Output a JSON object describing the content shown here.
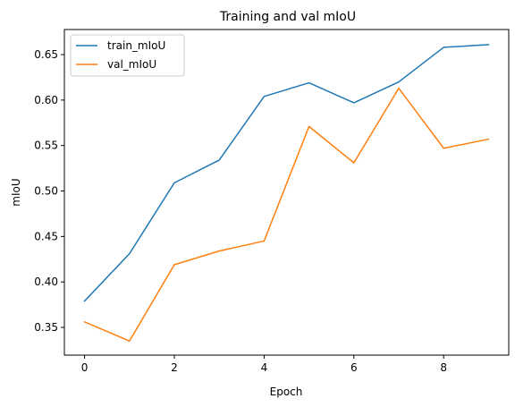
{
  "chart_data": {
    "type": "line",
    "title": "Training and val mIoU",
    "xlabel": "Epoch",
    "ylabel": "mIoU",
    "x": [
      0,
      1,
      2,
      3,
      4,
      5,
      6,
      7,
      8,
      9
    ],
    "xlim": [
      -0.45,
      9.45
    ],
    "ylim": [
      0.3195,
      0.6776
    ],
    "xticks": [
      0,
      2,
      4,
      6,
      8
    ],
    "xtick_labels": [
      "0",
      "2",
      "4",
      "6",
      "8"
    ],
    "yticks": [
      0.35,
      0.4,
      0.45,
      0.5,
      0.55,
      0.6,
      0.65
    ],
    "ytick_labels": [
      "0.35",
      "0.40",
      "0.45",
      "0.50",
      "0.55",
      "0.60",
      "0.65"
    ],
    "grid": false,
    "legend_position": "upper-left",
    "series": [
      {
        "name": "train_mIoU",
        "color": "#1f77b4",
        "values": [
          0.379,
          0.431,
          0.509,
          0.534,
          0.604,
          0.619,
          0.597,
          0.62,
          0.658,
          0.661
        ]
      },
      {
        "name": "val_mIoU",
        "color": "#ff7f0e",
        "values": [
          0.356,
          0.335,
          0.419,
          0.434,
          0.445,
          0.571,
          0.531,
          0.613,
          0.547,
          0.557
        ]
      }
    ]
  }
}
